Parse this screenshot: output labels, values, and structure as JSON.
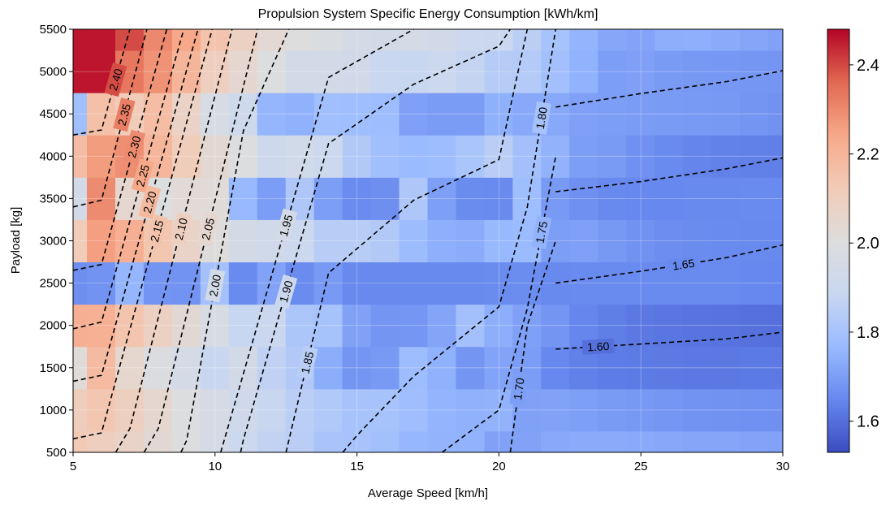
{
  "chart_data": {
    "type": "heatmap",
    "subtype": "filled contour with labeled contour lines",
    "title": "Propulsion System Specific Energy Consumption [kWh/km]",
    "xlabel": "Average Speed [km/h]",
    "ylabel": "Payload [kg]",
    "xlim": [
      5,
      30
    ],
    "ylim": [
      500,
      5500
    ],
    "x_ticks": [
      "5",
      "10",
      "15",
      "20",
      "25",
      "30"
    ],
    "y_ticks": [
      "500",
      "1000",
      "1500",
      "2000",
      "2500",
      "3000",
      "3500",
      "4000",
      "4500",
      "5000",
      "5500"
    ],
    "grid": true,
    "colormap": "coolwarm",
    "colormap_stops": [
      "#3b4cc0",
      "#6788ee",
      "#9abbff",
      "#c9d7f0",
      "#dddddd",
      "#f2cbb7",
      "#f7a889",
      "#e26952",
      "#b40426"
    ],
    "colorbar": {
      "range": [
        1.53,
        2.48
      ],
      "ticks": [
        "1.6",
        "1.8",
        "2.0",
        "2.2",
        "2.4"
      ]
    },
    "grid_speeds": [
      5,
      6,
      7,
      8,
      9,
      10,
      11,
      12,
      13,
      14,
      15,
      16,
      17,
      18,
      19,
      20,
      21,
      22,
      23,
      24,
      25,
      26,
      27,
      28,
      29,
      30
    ],
    "grid_payloads": [
      500,
      1000,
      1500,
      2000,
      2500,
      3000,
      3500,
      4000,
      4500,
      5000,
      5500
    ],
    "contours": [
      {
        "level": "2.40",
        "label": "2.40",
        "points": [
          [
            5,
            4250
          ],
          [
            6,
            4310
          ],
          [
            7,
            5500
          ]
        ]
      },
      {
        "level": "2.35",
        "label": "2.35",
        "points": [
          [
            5,
            3400
          ],
          [
            6,
            3480
          ],
          [
            7.6,
            5500
          ]
        ]
      },
      {
        "level": "2.30",
        "label": "2.30",
        "points": [
          [
            5,
            2650
          ],
          [
            6,
            2720
          ],
          [
            8.3,
            5500
          ]
        ]
      },
      {
        "level": "2.25",
        "label": "2.25",
        "points": [
          [
            5,
            1960
          ],
          [
            6,
            2040
          ],
          [
            8.9,
            5500
          ]
        ]
      },
      {
        "level": "2.20",
        "label": "2.20",
        "points": [
          [
            5,
            1340
          ],
          [
            6,
            1410
          ],
          [
            9.4,
            5500
          ]
        ]
      },
      {
        "level": "2.15",
        "label": "2.15",
        "points": [
          [
            5,
            660
          ],
          [
            6,
            730
          ],
          [
            9.9,
            5500
          ]
        ]
      },
      {
        "level": "2.10",
        "label": "2.10",
        "points": [
          [
            6.5,
            500
          ],
          [
            7,
            780
          ],
          [
            10.6,
            5500
          ]
        ]
      },
      {
        "level": "2.05",
        "label": "2.05",
        "points": [
          [
            7.5,
            500
          ],
          [
            8,
            780
          ],
          [
            11.5,
            5500
          ]
        ]
      },
      {
        "level": "2.00",
        "label": "2.00",
        "points": [
          [
            8.8,
            500
          ],
          [
            9,
            640
          ],
          [
            11,
            4300
          ],
          [
            12.6,
            5500
          ]
        ]
      },
      {
        "level": "1.95",
        "label": "1.95",
        "points": [
          [
            10.2,
            500
          ],
          [
            11,
            1430
          ],
          [
            14,
            4930
          ],
          [
            17,
            5500
          ]
        ]
      },
      {
        "level": "1.90",
        "label": "1.90",
        "points": [
          [
            10.9,
            500
          ],
          [
            11,
            650
          ],
          [
            14,
            4150
          ],
          [
            17,
            4850
          ],
          [
            20,
            5300
          ],
          [
            20.4,
            5500
          ]
        ]
      },
      {
        "level": "1.85",
        "label": "1.85",
        "points": [
          [
            12.5,
            500
          ],
          [
            14,
            2620
          ],
          [
            17,
            3480
          ],
          [
            20,
            3960
          ],
          [
            21,
            5500
          ]
        ]
      },
      {
        "level": "1.80",
        "label": "1.80",
        "points": [
          [
            14.5,
            500
          ],
          [
            15,
            700
          ],
          [
            17,
            1400
          ],
          [
            20,
            2220
          ],
          [
            21,
            3400
          ],
          [
            22,
            5500
          ]
        ]
      },
      {
        "level": "1.75",
        "label": "1.75",
        "points": [
          [
            18,
            500
          ],
          [
            20,
            1000
          ],
          [
            21,
            2200
          ],
          [
            22,
            4000
          ]
        ]
      },
      {
        "level": "1.70",
        "label": "1.70",
        "points": [
          [
            20.4,
            500
          ],
          [
            21,
            2000
          ],
          [
            22,
            3000
          ]
        ]
      },
      {
        "level": "1.65",
        "label": "1.65",
        "points": [
          [
            22,
            2500
          ],
          [
            25,
            2640
          ],
          [
            28,
            2800
          ],
          [
            30,
            2950
          ]
        ]
      },
      {
        "level": "1.60",
        "label": "1.60",
        "points": [
          [
            22,
            1720
          ],
          [
            25,
            1780
          ],
          [
            28,
            1840
          ],
          [
            30,
            1920
          ]
        ]
      },
      {
        "level": "1.63",
        "label": "",
        "points": [
          [
            22,
            3580
          ],
          [
            25,
            3700
          ],
          [
            28,
            3850
          ],
          [
            30,
            3980
          ]
        ]
      },
      {
        "level": "1.68",
        "label": "",
        "points": [
          [
            22,
            4580
          ],
          [
            25,
            4740
          ],
          [
            28,
            4880
          ],
          [
            30,
            5010
          ]
        ]
      }
    ]
  }
}
